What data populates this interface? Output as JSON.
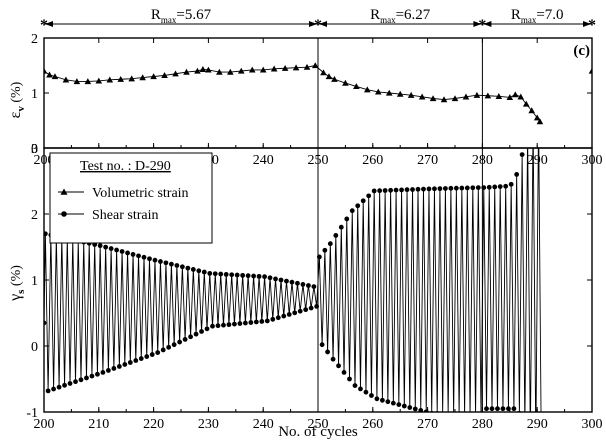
{
  "chart_data": [
    {
      "type": "line",
      "panel": "volumetric",
      "panel_tag": "(c)",
      "ylabel_main": "ε",
      "ylabel_sub": "v",
      "ylabel_unit": "(%)",
      "xlim": [
        200,
        300
      ],
      "ylim": [
        0,
        2
      ],
      "xticks": [
        200,
        210,
        220,
        230,
        240,
        250,
        260,
        270,
        280,
        290,
        300
      ],
      "yticks": [
        0,
        1,
        2
      ],
      "stage_lines": [
        250,
        280
      ],
      "stages": [
        {
          "label_main": "R",
          "label_sub": "max",
          "label_value": "=5.67",
          "from": 200,
          "to": 250
        },
        {
          "label_main": "R",
          "label_sub": "max",
          "label_value": "=6.27",
          "from": 250,
          "to": 280
        },
        {
          "label_main": "R",
          "label_sub": "max",
          "label_value": "=7.0",
          "from": 280,
          "to": 300
        }
      ],
      "series": [
        {
          "name": "Volumetric strain",
          "marker": "triangle",
          "points": [
            [
              200,
              1.4
            ],
            [
              201,
              1.33
            ],
            [
              202,
              1.3
            ],
            [
              204,
              1.24
            ],
            [
              206,
              1.21
            ],
            [
              208,
              1.21
            ],
            [
              210,
              1.22
            ],
            [
              212,
              1.24
            ],
            [
              214,
              1.25
            ],
            [
              216,
              1.26
            ],
            [
              218,
              1.28
            ],
            [
              220,
              1.3
            ],
            [
              222,
              1.32
            ],
            [
              224,
              1.35
            ],
            [
              226,
              1.38
            ],
            [
              228,
              1.4
            ],
            [
              229,
              1.43
            ],
            [
              230,
              1.42
            ],
            [
              232,
              1.38
            ],
            [
              234,
              1.38
            ],
            [
              236,
              1.4
            ],
            [
              238,
              1.42
            ],
            [
              240,
              1.42
            ],
            [
              242,
              1.44
            ],
            [
              244,
              1.45
            ],
            [
              246,
              1.46
            ],
            [
              248,
              1.47
            ],
            [
              249.5,
              1.5
            ],
            [
              251,
              1.37
            ],
            [
              252,
              1.3
            ],
            [
              253,
              1.25
            ],
            [
              255,
              1.18
            ],
            [
              257,
              1.12
            ],
            [
              259,
              1.06
            ],
            [
              261,
              1.02
            ],
            [
              263,
              1.0
            ],
            [
              265,
              0.98
            ],
            [
              267,
              0.96
            ],
            [
              269,
              0.93
            ],
            [
              271,
              0.9
            ],
            [
              273,
              0.88
            ],
            [
              275,
              0.9
            ],
            [
              277,
              0.93
            ],
            [
              279,
              0.96
            ],
            [
              281,
              0.95
            ],
            [
              283,
              0.94
            ],
            [
              285,
              0.92
            ],
            [
              286,
              0.97
            ],
            [
              287,
              0.93
            ],
            [
              288,
              0.8
            ],
            [
              289,
              0.68
            ],
            [
              290,
              0.55
            ],
            [
              290.5,
              0.48
            ],
            [
              300,
              1.4
            ]
          ]
        }
      ]
    },
    {
      "type": "line",
      "panel": "shear",
      "ylabel_main": "γ",
      "ylabel_sub": "s",
      "ylabel_unit": "(%)",
      "xlabel": "No. of cycles",
      "xlim": [
        200,
        300
      ],
      "ylim": [
        -1,
        3
      ],
      "xticks": [
        200,
        210,
        220,
        230,
        240,
        250,
        260,
        270,
        280,
        290,
        300
      ],
      "yticks": [
        -1,
        0,
        1,
        2,
        3
      ],
      "stage_lines": [
        250,
        280
      ],
      "legend_title": "Test no. : D-290",
      "legend_entries": [
        {
          "name": "Volumetric strain",
          "marker": "triangle"
        },
        {
          "name": "Shear strain",
          "marker": "circle"
        }
      ],
      "series": [
        {
          "name": "Shear strain",
          "marker": "circle",
          "start_point": [
            200,
            0.35
          ],
          "cycle_envelope": [
            {
              "cycle": 200,
              "max": 1.7,
              "min": -0.68
            },
            {
              "cycle": 210,
              "max": 1.52,
              "min": -0.4
            },
            {
              "cycle": 220,
              "max": 1.3,
              "min": -0.1
            },
            {
              "cycle": 230,
              "max": 1.1,
              "min": 0.3
            },
            {
              "cycle": 240,
              "max": 1.05,
              "min": 0.38
            },
            {
              "cycle": 249,
              "max": 0.9,
              "min": 0.6
            },
            {
              "cycle": 250,
              "max": 1.35,
              "min": 0.02
            },
            {
              "cycle": 252,
              "max": 1.55,
              "min": -0.2
            },
            {
              "cycle": 256,
              "max": 2.05,
              "min": -0.6
            },
            {
              "cycle": 260,
              "max": 2.35,
              "min": -0.8
            },
            {
              "cycle": 270,
              "max": 2.38,
              "min": -1.02
            },
            {
              "cycle": 279,
              "max": 2.4,
              "min": -1.05
            },
            {
              "cycle": 280,
              "max": 2.4,
              "min": -0.95
            },
            {
              "cycle": 284,
              "max": 2.42,
              "min": -0.95
            },
            {
              "cycle": 285,
              "max": 2.45,
              "min": -0.95
            },
            {
              "cycle": 286,
              "max": 2.6,
              "min": -1.02
            },
            {
              "cycle": 287,
              "max": 2.9,
              "min": -1.2
            },
            {
              "cycle": 288,
              "max": 3.2,
              "min": -1.4
            },
            {
              "cycle": 289,
              "max": 3.4,
              "min": -1.48
            },
            {
              "cycle": 290,
              "max": 3.5,
              "min": -1.55
            }
          ]
        }
      ]
    }
  ]
}
